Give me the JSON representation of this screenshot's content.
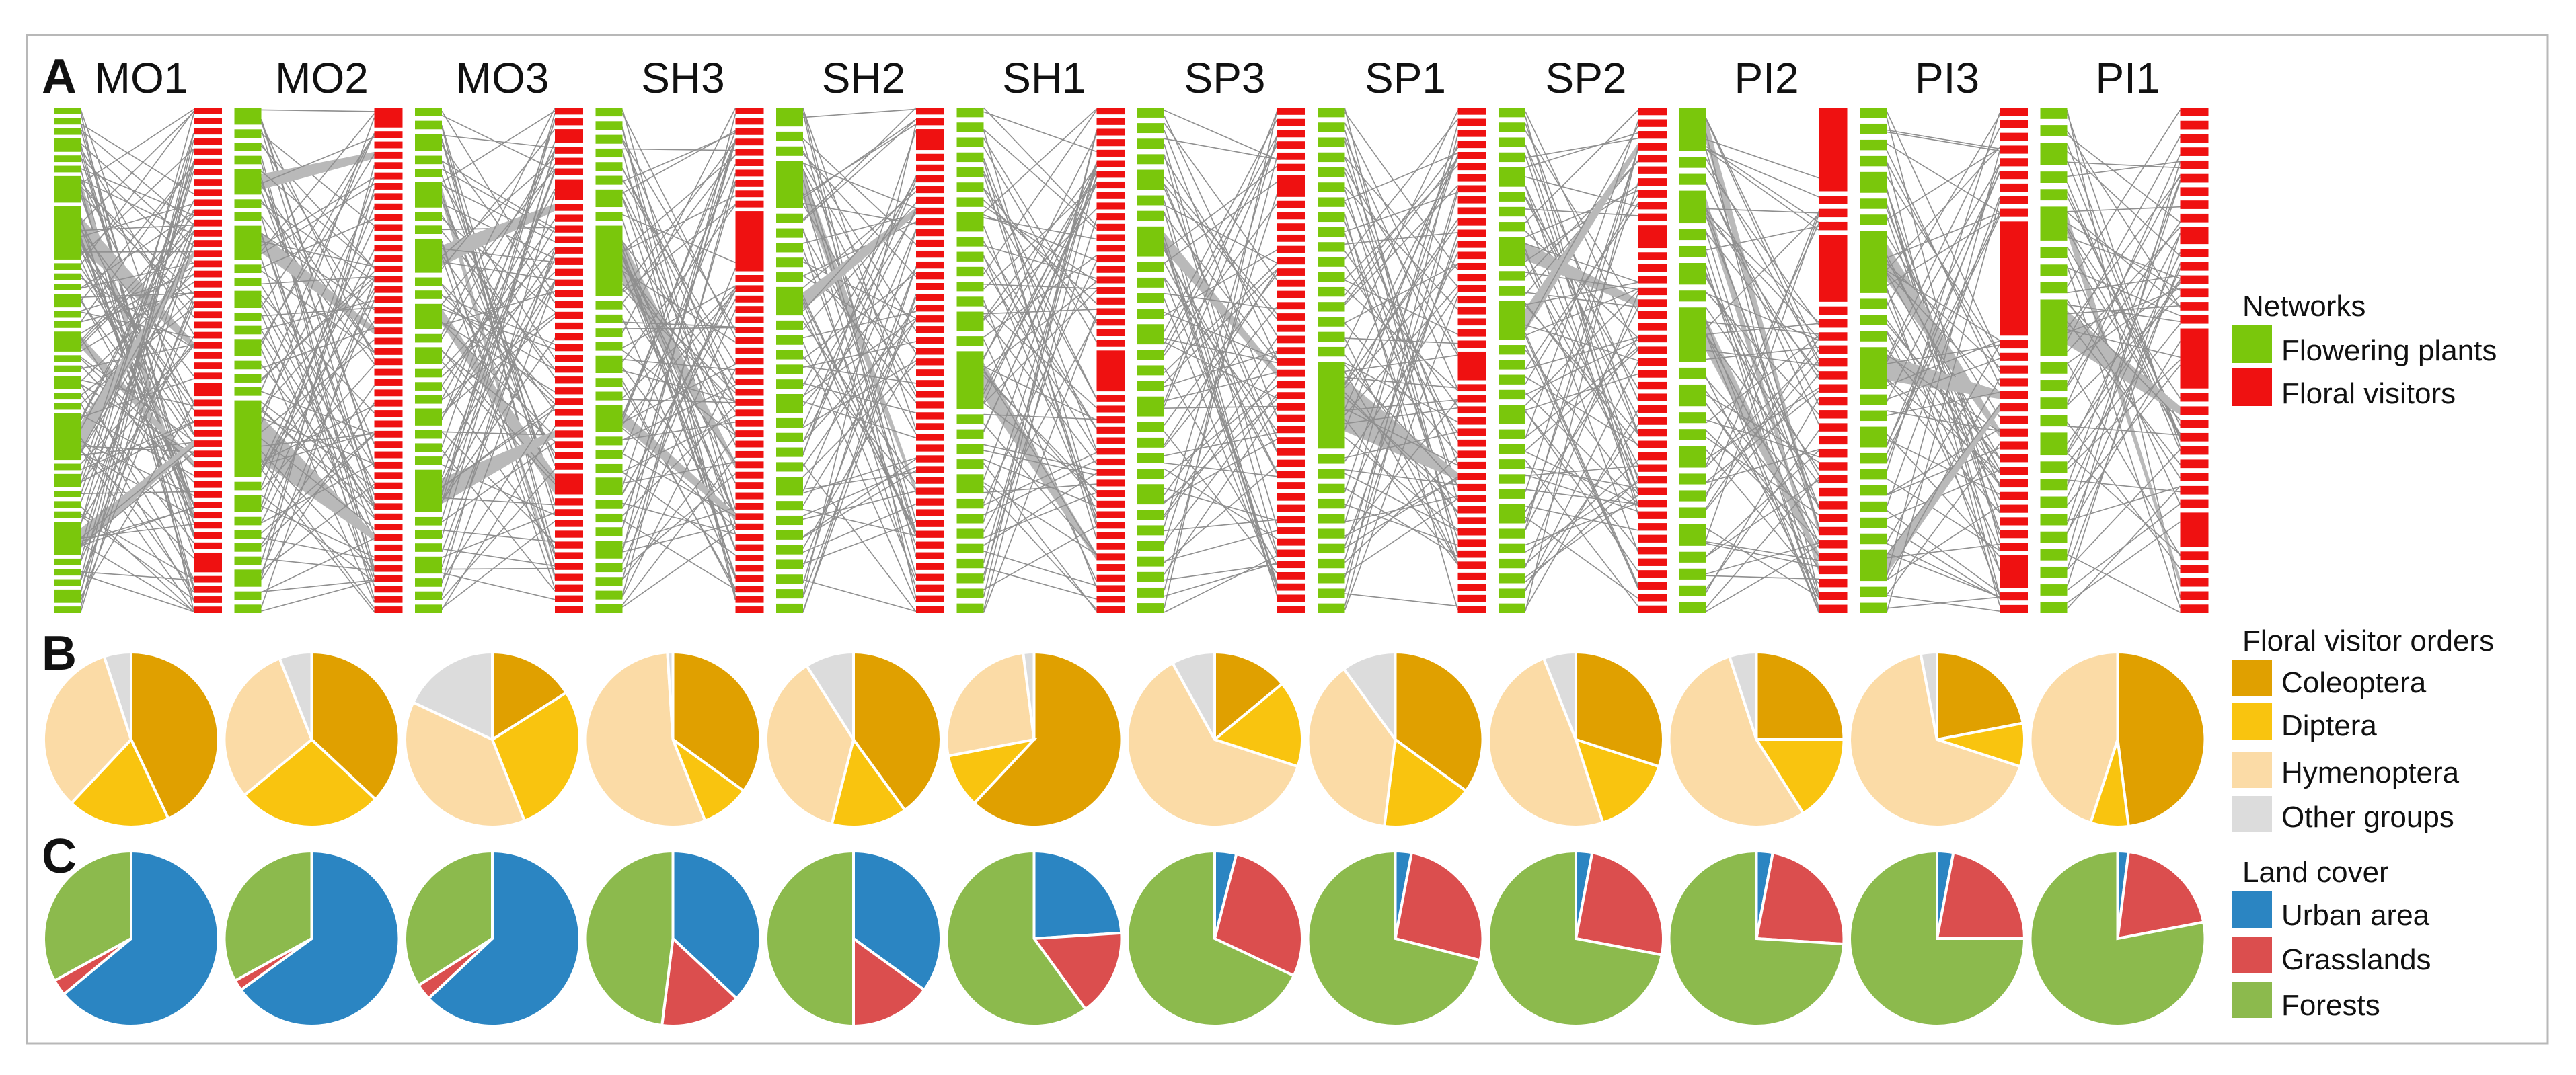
{
  "panel_labels": {
    "a": "A",
    "b": "B",
    "c": "C"
  },
  "colors": {
    "plants": "#7ac70c",
    "visitors": "#ef1111",
    "links": "#b9b9b9",
    "coleoptera": "#e0a000",
    "diptera": "#f9c40f",
    "hymenoptera": "#fbdba6",
    "other": "#dcdcdc",
    "urban": "#2b85c2",
    "grasslands": "#db4e4e",
    "forests": "#8cba4d"
  },
  "legend_networks": {
    "title": "Networks",
    "items": [
      {
        "label": "Flowering plants",
        "color_key": "plants"
      },
      {
        "label": "Floral visitors",
        "color_key": "visitors"
      }
    ]
  },
  "legend_orders": {
    "title": "Floral visitor orders",
    "items": [
      {
        "label": "Coleoptera",
        "color_key": "coleoptera"
      },
      {
        "label": "Diptera",
        "color_key": "diptera"
      },
      {
        "label": "Hymenoptera",
        "color_key": "hymenoptera"
      },
      {
        "label": "Other groups",
        "color_key": "other"
      }
    ]
  },
  "legend_landcover": {
    "title": "Land cover",
    "items": [
      {
        "label": "Urban area",
        "color_key": "urban"
      },
      {
        "label": "Grasslands",
        "color_key": "grasslands"
      },
      {
        "label": "Forests",
        "color_key": "forests"
      }
    ]
  },
  "chart_data": [
    {
      "type": "bipartite-network",
      "panel": "A",
      "sites": [
        "MO1",
        "MO2",
        "MO3",
        "SH3",
        "SH2",
        "SH1",
        "SP3",
        "SP1",
        "SP2",
        "PI2",
        "PI3",
        "PI1"
      ],
      "plant_module_sizes": [
        [
          1,
          1,
          1,
          2,
          1,
          1,
          4,
          8,
          1,
          1,
          1,
          2,
          1,
          1,
          3,
          1,
          1,
          2,
          1,
          1,
          7,
          1,
          2,
          1,
          1,
          1,
          5,
          1,
          1,
          1,
          2,
          1
        ],
        [
          2,
          1,
          1,
          1,
          3,
          1,
          1,
          4,
          1,
          1,
          2,
          1,
          1,
          2,
          1,
          1,
          1,
          9,
          1,
          2,
          1,
          1,
          1,
          1,
          2,
          1,
          1
        ],
        [
          1,
          1,
          2,
          1,
          1,
          3,
          1,
          1,
          4,
          1,
          1,
          3,
          1,
          2,
          1,
          1,
          1,
          2,
          1,
          1,
          1,
          5,
          1,
          1,
          1,
          2,
          1,
          1,
          1
        ],
        [
          1,
          1,
          1,
          1,
          1,
          1,
          2,
          1,
          8,
          1,
          1,
          1,
          1,
          2,
          1,
          1,
          3,
          1,
          1,
          1,
          2,
          1,
          1,
          1,
          2,
          1,
          1,
          1,
          1
        ],
        [
          2,
          1,
          1,
          5,
          1,
          1,
          1,
          1,
          1,
          3,
          1,
          1,
          1,
          1,
          1,
          2,
          1,
          1,
          1,
          1,
          2,
          1,
          1,
          1,
          1,
          1,
          1,
          1,
          1
        ],
        [
          1,
          1,
          1,
          1,
          1,
          1,
          1,
          2,
          1,
          1,
          1,
          1,
          1,
          2,
          1,
          6,
          1,
          1,
          1,
          1,
          2,
          1,
          1,
          1,
          1,
          1,
          1,
          1,
          1
        ],
        [
          1,
          1,
          1,
          1,
          2,
          1,
          1,
          3,
          1,
          1,
          1,
          1,
          2,
          1,
          1,
          1,
          2,
          1,
          1,
          1,
          1,
          2,
          1,
          1,
          1,
          1,
          1,
          1,
          1
        ],
        [
          1,
          1,
          1,
          1,
          1,
          1,
          1,
          1,
          1,
          1,
          1,
          1,
          1,
          1,
          1,
          1,
          1,
          9,
          1,
          1,
          1,
          1,
          1,
          1,
          1,
          1,
          1,
          1,
          1
        ],
        [
          1,
          1,
          1,
          1,
          2,
          1,
          1,
          1,
          3,
          1,
          1,
          4,
          1,
          1,
          1,
          1,
          2,
          1,
          1,
          1,
          1,
          1,
          2,
          1,
          1,
          1,
          1,
          1,
          1
        ],
        [
          4,
          1,
          1,
          3,
          1,
          1,
          2,
          1,
          5,
          1,
          2,
          1,
          1,
          2,
          1,
          1,
          1,
          2,
          1,
          1,
          1,
          1
        ],
        [
          1,
          1,
          1,
          1,
          2,
          1,
          1,
          6,
          1,
          1,
          1,
          4,
          1,
          1,
          2,
          1,
          1,
          1,
          1,
          1,
          1,
          3,
          1,
          1
        ],
        [
          1,
          1,
          2,
          1,
          1,
          3,
          1,
          1,
          1,
          5,
          1,
          1,
          1,
          1,
          2,
          1,
          1,
          1,
          1,
          1,
          1,
          1,
          1,
          1
        ]
      ],
      "visitor_module_sizes": [
        [
          1,
          1,
          1,
          1,
          1,
          1,
          1,
          1,
          1,
          1,
          1,
          1,
          1,
          1,
          1,
          1,
          1,
          1,
          1,
          1,
          1,
          1,
          1,
          1,
          1,
          1,
          1,
          2,
          1,
          1,
          1,
          1,
          1,
          1,
          1,
          1,
          1,
          1,
          1,
          1,
          1,
          1,
          1,
          3,
          1,
          1,
          1,
          1
        ],
        [
          3,
          1,
          1,
          1,
          1,
          1,
          1,
          1,
          1,
          1,
          1,
          1,
          1,
          1,
          1,
          1,
          1,
          1,
          1,
          1,
          1,
          1,
          1,
          1,
          1,
          1,
          1,
          1,
          1,
          1,
          1,
          1,
          1,
          1,
          1,
          1,
          1,
          1,
          1,
          1,
          1,
          1,
          1,
          1,
          1,
          1,
          1,
          1
        ],
        [
          1,
          1,
          2,
          1,
          1,
          1,
          3,
          1,
          1,
          1,
          1,
          1,
          1,
          1,
          1,
          1,
          1,
          1,
          1,
          1,
          1,
          1,
          1,
          1,
          1,
          1,
          1,
          1,
          1,
          1,
          1,
          1,
          3,
          1,
          1,
          1,
          1,
          1,
          1,
          1,
          1,
          1,
          1,
          1
        ],
        [
          1,
          1,
          1,
          1,
          1,
          1,
          1,
          1,
          1,
          1,
          9,
          1,
          1,
          1,
          1,
          1,
          1,
          1,
          1,
          1,
          1,
          1,
          1,
          1,
          1,
          1,
          1,
          1,
          1,
          1,
          1,
          1,
          1,
          1,
          1,
          1,
          1,
          1,
          1,
          1,
          1,
          1,
          1,
          1
        ],
        [
          1,
          1,
          3,
          1,
          1,
          1,
          1,
          1,
          1,
          1,
          1,
          1,
          1,
          1,
          1,
          1,
          1,
          1,
          1,
          1,
          1,
          1,
          1,
          1,
          1,
          1,
          1,
          1,
          1,
          1,
          1,
          1,
          1,
          1,
          1,
          1,
          1,
          1,
          1,
          1,
          1,
          1,
          1,
          1,
          1,
          1
        ],
        [
          1,
          1,
          1,
          1,
          1,
          1,
          1,
          1,
          1,
          1,
          1,
          1,
          1,
          1,
          1,
          1,
          1,
          1,
          1,
          1,
          1,
          1,
          1,
          6,
          1,
          1,
          1,
          1,
          1,
          1,
          1,
          1,
          1,
          1,
          1,
          1,
          1,
          1,
          1,
          1,
          1,
          1,
          1,
          1,
          1
        ],
        [
          1,
          1,
          1,
          1,
          1,
          1,
          3,
          1,
          1,
          1,
          1,
          1,
          1,
          1,
          1,
          1,
          1,
          1,
          1,
          1,
          1,
          1,
          1,
          1,
          1,
          1,
          1,
          1,
          1,
          1,
          1,
          1,
          1,
          1,
          1,
          1,
          1,
          1,
          1,
          1,
          1,
          1,
          1,
          1
        ],
        [
          1,
          1,
          1,
          1,
          1,
          1,
          1,
          1,
          1,
          1,
          1,
          1,
          1,
          1,
          1,
          1,
          1,
          1,
          1,
          1,
          1,
          1,
          4,
          1,
          1,
          1,
          1,
          1,
          1,
          1,
          1,
          1,
          1,
          1,
          1,
          1,
          1,
          1,
          1,
          1,
          1,
          1,
          1,
          1
        ],
        [
          1,
          1,
          1,
          1,
          1,
          1,
          1,
          1,
          1,
          1,
          3,
          1,
          1,
          1,
          1,
          1,
          1,
          1,
          1,
          1,
          1,
          1,
          1,
          1,
          1,
          1,
          1,
          1,
          1,
          1,
          1,
          1,
          1,
          1,
          1,
          1,
          1,
          1,
          1,
          1,
          1,
          1
        ],
        [
          10,
          1,
          1,
          1,
          8,
          1,
          1,
          1,
          1,
          1,
          1,
          1,
          1,
          1,
          1,
          1,
          1,
          1,
          1,
          1,
          1,
          1,
          1,
          1,
          1,
          1,
          1,
          1,
          1
        ],
        [
          1,
          1,
          1,
          1,
          1,
          1,
          1,
          1,
          1,
          14,
          1,
          1,
          1,
          1,
          1,
          1,
          1,
          1,
          1,
          1,
          1,
          1,
          1,
          1,
          1,
          1,
          1,
          4,
          1,
          1
        ],
        [
          1,
          1,
          1,
          1,
          1,
          1,
          1,
          1,
          1,
          2,
          1,
          1,
          1,
          1,
          1,
          1,
          7,
          1,
          1,
          1,
          1,
          1,
          1,
          1,
          1,
          1,
          4,
          1,
          1,
          1,
          1,
          1
        ]
      ]
    },
    {
      "type": "pie",
      "panel": "B",
      "title": "Floral visitor orders",
      "categories": [
        "Coleoptera",
        "Diptera",
        "Hymenoptera",
        "Other groups"
      ],
      "series": [
        {
          "name": "MO1",
          "values": [
            43,
            19,
            33,
            5
          ]
        },
        {
          "name": "MO2",
          "values": [
            37,
            27,
            30,
            6
          ]
        },
        {
          "name": "MO3",
          "values": [
            16,
            28,
            38,
            18
          ]
        },
        {
          "name": "SH3",
          "values": [
            35,
            9,
            55,
            1
          ]
        },
        {
          "name": "SH2",
          "values": [
            40,
            14,
            37,
            9
          ]
        },
        {
          "name": "SH1",
          "values": [
            62,
            10,
            26,
            2
          ]
        },
        {
          "name": "SP3",
          "values": [
            14,
            16,
            62,
            8
          ]
        },
        {
          "name": "SP1",
          "values": [
            35,
            17,
            38,
            10
          ]
        },
        {
          "name": "SP2",
          "values": [
            30,
            15,
            49,
            6
          ]
        },
        {
          "name": "PI2",
          "values": [
            25,
            16,
            54,
            5
          ]
        },
        {
          "name": "PI3",
          "values": [
            22,
            8,
            67,
            3
          ]
        },
        {
          "name": "PI1",
          "values": [
            48,
            7,
            45,
            0
          ]
        }
      ]
    },
    {
      "type": "pie",
      "panel": "C",
      "title": "Land cover",
      "categories": [
        "Urban area",
        "Grasslands",
        "Forests"
      ],
      "series": [
        {
          "name": "MO1",
          "values": [
            64,
            3,
            33
          ]
        },
        {
          "name": "MO2",
          "values": [
            65,
            2,
            33
          ]
        },
        {
          "name": "MO3",
          "values": [
            63,
            3,
            34
          ]
        },
        {
          "name": "SH3",
          "values": [
            37,
            15,
            48
          ]
        },
        {
          "name": "SH2",
          "values": [
            35,
            15,
            50
          ]
        },
        {
          "name": "SH1",
          "values": [
            24,
            16,
            60
          ]
        },
        {
          "name": "SP3",
          "values": [
            4,
            28,
            68
          ]
        },
        {
          "name": "SP1",
          "values": [
            3,
            26,
            71
          ]
        },
        {
          "name": "SP2",
          "values": [
            3,
            25,
            72
          ]
        },
        {
          "name": "PI2",
          "values": [
            3,
            23,
            74
          ]
        },
        {
          "name": "PI3",
          "values": [
            3,
            22,
            75
          ]
        },
        {
          "name": "PI1",
          "values": [
            2,
            20,
            78
          ]
        }
      ]
    }
  ]
}
